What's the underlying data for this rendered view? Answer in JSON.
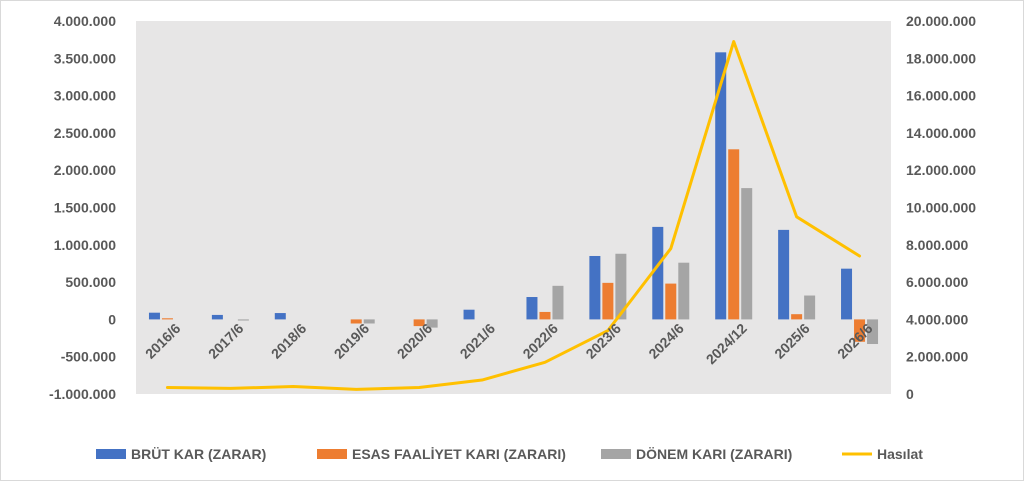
{
  "chart_data": {
    "type": "bar",
    "categories": [
      "2016/6",
      "2017/6",
      "2018/6",
      "2019/6",
      "2020/6",
      "2021/6",
      "2022/6",
      "2023/6",
      "2024/6",
      "2024/12",
      "2025/6",
      "2026/6"
    ],
    "series": [
      {
        "name": "BRÜT KAR (ZARAR)",
        "type": "bar",
        "axis": "left",
        "color": "#4472C4",
        "values": [
          90,
          60,
          85,
          0,
          0,
          130,
          300,
          850,
          1240,
          3580,
          1200,
          680
        ]
      },
      {
        "name": "ESAS FAALİYET KARI (ZARARI)",
        "type": "bar",
        "axis": "left",
        "color": "#ED7D31",
        "values": [
          15,
          0,
          0,
          -55,
          -90,
          0,
          100,
          490,
          480,
          2280,
          70,
          -300
        ]
      },
      {
        "name": "DÖNEM KARI (ZARARI)",
        "type": "bar",
        "axis": "left",
        "color": "#A5A5A5",
        "values": [
          0,
          -15,
          0,
          -55,
          -110,
          0,
          450,
          880,
          760,
          1760,
          320,
          -330
        ]
      },
      {
        "name": "Hasılat",
        "type": "line",
        "axis": "right",
        "color": "#FFC000",
        "values": [
          350000,
          300000,
          400000,
          250000,
          350000,
          750000,
          1700000,
          3400000,
          7800000,
          18900000,
          9500000,
          7400000
        ]
      }
    ],
    "y_left": {
      "ylim": [
        -1000000,
        4000000
      ],
      "ticks": [
        4000000,
        3500000,
        3000000,
        2500000,
        2000000,
        1500000,
        1000000,
        500000,
        0,
        -500000,
        -1000000
      ],
      "tick_labels": [
        "4.000.000",
        "3.500.000",
        "3.000.000",
        "2.500.000",
        "2.000.000",
        "1.500.000",
        "1.000.000",
        "500.000",
        "0",
        "-500.000",
        "-1.000.000"
      ]
    },
    "y_right": {
      "ylim": [
        0,
        20000000
      ],
      "ticks": [
        20000000,
        18000000,
        16000000,
        14000000,
        12000000,
        10000000,
        8000000,
        6000000,
        4000000,
        2000000,
        0
      ],
      "tick_labels": [
        "20.000.000",
        "18.000.000",
        "16.000.000",
        "14.000.000",
        "12.000.000",
        "10.000.000",
        "8.000.000",
        "6.000.000",
        "4.000.000",
        "2.000.000",
        "0"
      ]
    },
    "bar_value_scale": 1000,
    "legend_position": "bottom",
    "plot_background": "#e7e6e6",
    "grid": false
  }
}
